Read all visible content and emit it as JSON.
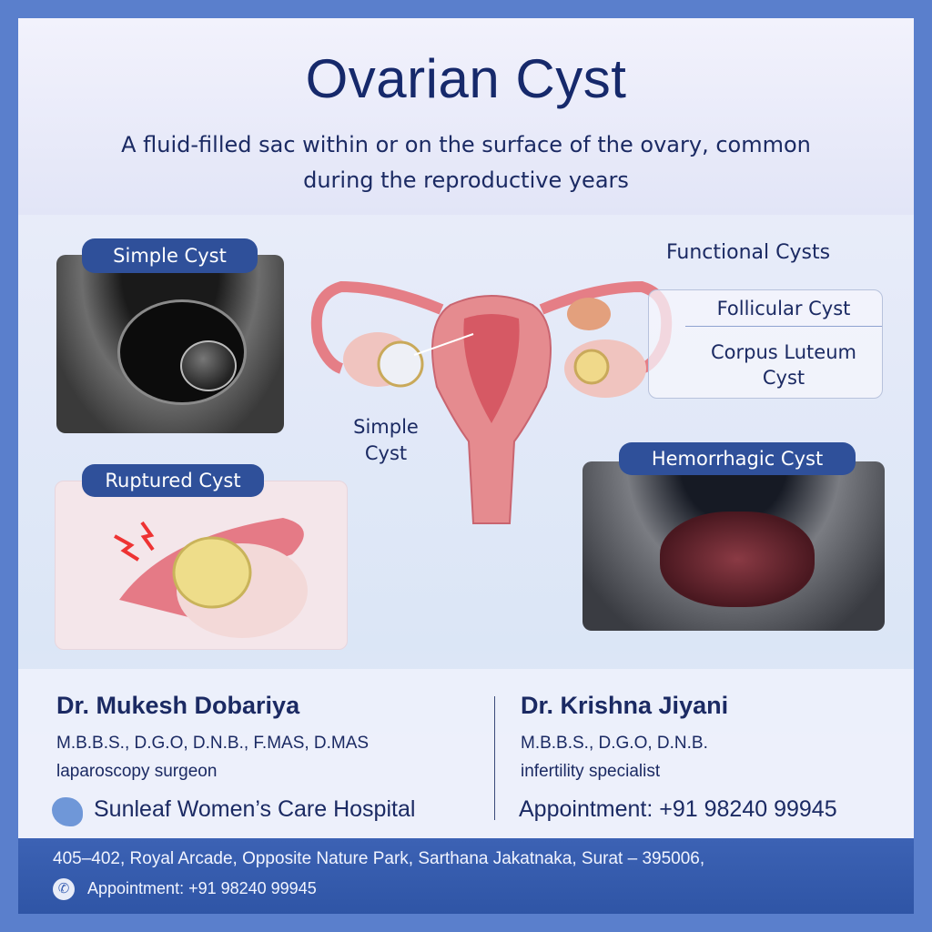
{
  "header": {
    "title": "Ovarian Cyst",
    "subtitle_line1": "A fluid-filled sac within or on the surface of the ovary, common",
    "subtitle_line2": "during the reproductive years"
  },
  "panels": {
    "simple_cyst": "Simple Cyst",
    "ruptured_cyst": "Ruptured Cyst",
    "hemorrhagic_cyst": "Hemorrhagic Cyst"
  },
  "diagram": {
    "simple_cyst_line1": "Simple",
    "simple_cyst_line2": "Cyst"
  },
  "functional": {
    "heading": "Functional Cysts",
    "items": [
      "Follicular Cyst",
      "Corpus Luteum",
      "Cyst"
    ]
  },
  "doctors": [
    {
      "name": "Dr. Mukesh Dobariya",
      "degrees": "M.B.B.S., D.G.O, D.N.B., F.MAS, D.MAS",
      "specialty": "laparoscopy surgeon"
    },
    {
      "name": "Dr. Krishna Jiyani",
      "degrees": "M.B.B.S., D.G.O, D.N.B.",
      "specialty": "infertility specialist"
    }
  ],
  "hospital": "Sunleaf Women’s Care Hospital",
  "appointment": "Appointment: +91 98240 99945",
  "footer": {
    "address": "405–402, Royal Arcade, Opposite Nature Park, Sarthana Jakatnaka, Surat – 395006,",
    "appointment": "Appointment: +91 98240 99945"
  },
  "colors": {
    "navy": "#16296b",
    "pill": "#2f509a",
    "frame": "#5a7fcc",
    "footer": "#3c62b4"
  }
}
